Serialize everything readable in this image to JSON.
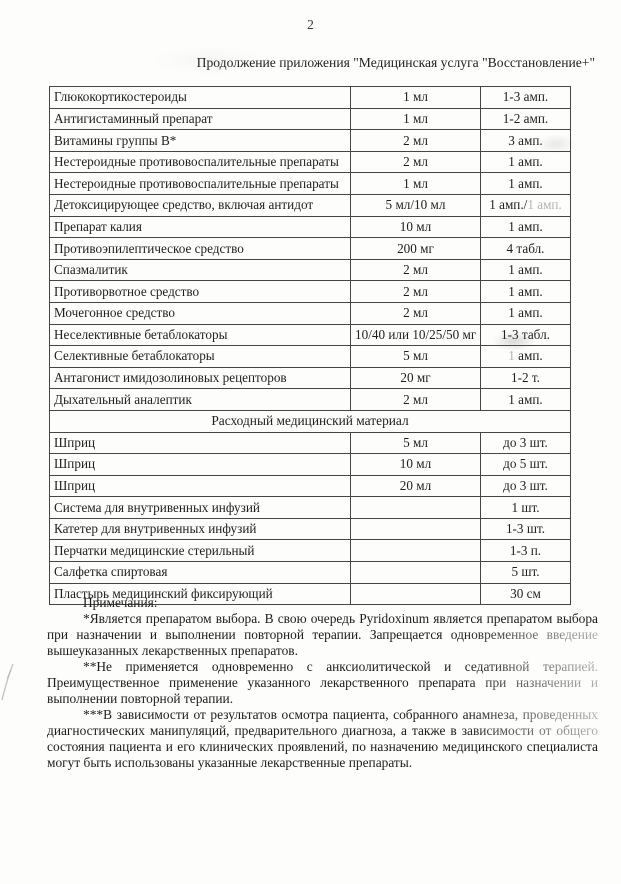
{
  "page": {
    "number": "2",
    "title": "Продолжение приложения \"Медицинская услуга \"Восстановление+\""
  },
  "table": {
    "rows": [
      {
        "name": "Глюкокортикостероиды",
        "dose": "1 мл",
        "qty": [
          {
            "t": "1-3 амп."
          }
        ]
      },
      {
        "name": "Антигистаминный препарат",
        "dose": "1 мл",
        "qty": [
          {
            "t": "1-2 амп."
          }
        ]
      },
      {
        "name": "Витамины группы В*",
        "dose": "2 мл",
        "qty": [
          {
            "t": "3 амп."
          }
        ]
      },
      {
        "name": "Нестероидные противовоспалительные препараты",
        "dose": "2 мл",
        "qty": [
          {
            "t": "1 амп."
          }
        ]
      },
      {
        "name": "Нестероидные противовоспалительные препараты",
        "dose": "1 мл",
        "qty": [
          {
            "t": "1 амп."
          }
        ]
      },
      {
        "name": "Детоксицирующее средство, включая антидот",
        "dose": "5 мл/10 мл",
        "qty": [
          {
            "t": "1 амп./"
          },
          {
            "t": "1 амп.",
            "f": true
          }
        ]
      },
      {
        "name": "Препарат калия",
        "dose": "10 мл",
        "qty": [
          {
            "t": "1 амп."
          }
        ]
      },
      {
        "name": "Противоэпилептическое средство",
        "dose": "200 мг",
        "qty": [
          {
            "t": "4 табл."
          }
        ]
      },
      {
        "name": "Спазмалитик",
        "dose": "2 мл",
        "qty": [
          {
            "t": "1 амп."
          }
        ]
      },
      {
        "name": "Противорвотное средство",
        "dose": "2 мл",
        "qty": [
          {
            "t": "1 амп."
          }
        ]
      },
      {
        "name": "Мочегонное средство",
        "dose": "2 мл",
        "qty": [
          {
            "t": "1 амп."
          }
        ]
      },
      {
        "name": "Неселективные бетаблокаторы",
        "dose": "10/40 или 10/25/50 мг",
        "qty": [
          {
            "t": "1-3 табл."
          }
        ]
      },
      {
        "name": "Селективные бетаблокаторы",
        "dose": "5 мл",
        "qty": [
          {
            "t": "1 ",
            "f": true
          },
          {
            "t": "амп."
          }
        ]
      },
      {
        "name": "Антагонист имидозолиновых рецепторов",
        "dose": "20 мг",
        "qty": [
          {
            "t": "1-2 т."
          }
        ]
      },
      {
        "name": "Дыхательный аналептик",
        "dose": "2 мл",
        "qty": [
          {
            "t": "1 амп."
          }
        ]
      },
      {
        "section": "Расходный медицинский материал"
      },
      {
        "name": "Шприц",
        "dose": "5 мл",
        "qty": [
          {
            "t": "до 3 шт."
          }
        ]
      },
      {
        "name": "Шприц",
        "dose": "10 мл",
        "qty": [
          {
            "t": "до 5 шт."
          }
        ]
      },
      {
        "name": "Шприц",
        "dose": "20 мл",
        "qty": [
          {
            "t": "до 3 шт."
          }
        ]
      },
      {
        "name": "Система для внутривенных инфузий",
        "dose": "",
        "qty": [
          {
            "t": "1 шт."
          }
        ]
      },
      {
        "name": "Катетер для внутривенных инфузий",
        "dose": "",
        "qty": [
          {
            "t": "1-3 шт."
          }
        ]
      },
      {
        "name": "Перчатки медицинские стерильный",
        "dose": "",
        "qty": [
          {
            "t": "1-3 п."
          }
        ]
      },
      {
        "name": "Салфетка спиртовая",
        "dose": "",
        "qty": [
          {
            "t": "5 шт."
          }
        ]
      },
      {
        "name": "Пластырь медицинский фиксирующий",
        "dose": "",
        "qty": [
          {
            "t": "30 см"
          }
        ]
      }
    ]
  },
  "notes": {
    "heading": "Примечания:",
    "paragraphs": [
      "*Является препаратом выбора. В свою очередь Pyridoxinum является препаратом выбора при назначении и выполнении повторной терапии. Запрещается одновременное введение вышеуказанных лекарственных препаратов.",
      "**Не применяется одновременно с анксиолитической и седативной терапией. Преимущественное применение указанного лекарственного препарата при назначении и выполнении повторной терапии.",
      "***В зависимости от результатов осмотра пациента, собранного анамнеза, проведенных диагностических манипуляций, предварительного диагноза, а также в зависимости от общего состояния пациента и его клинических проявлений, по назначению медицинского специалиста могут быть использованы указанные лекарственные препараты."
    ]
  }
}
